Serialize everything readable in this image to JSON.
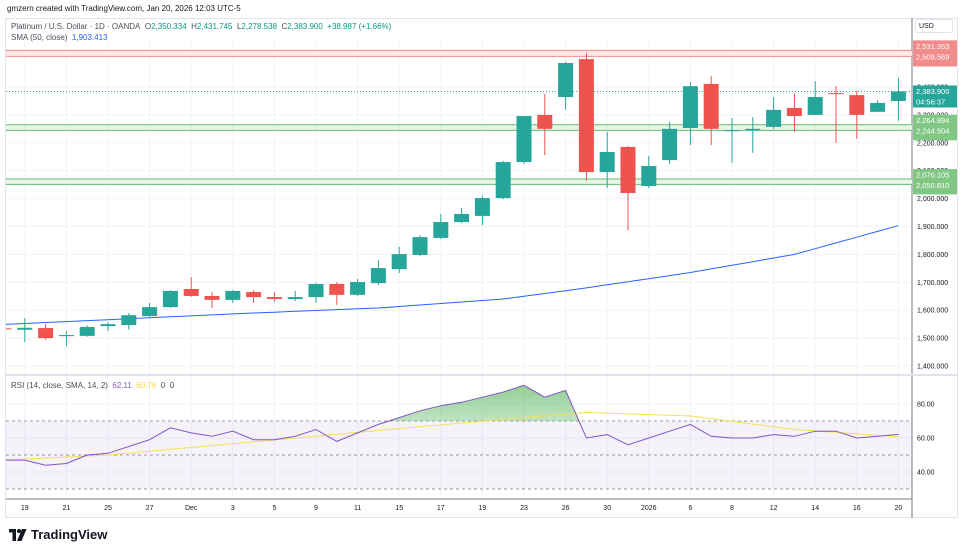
{
  "credit": "gmzern created with TradingView.com, Jan 20, 2026 12:03 UTC-5",
  "symbol": {
    "title": "Platinum / U.S. Dollar · 1D · OANDA",
    "o_label": "O",
    "o": "2,350.334",
    "h_label": "H",
    "h": "2,431.745",
    "l_label": "L",
    "l": "2,278.538",
    "c_label": "C",
    "c": "2,383.900",
    "change": "+38.987 (+1.66%)"
  },
  "sma_legend": {
    "label": "SMA (50, close)",
    "value": "1,903.413"
  },
  "rsi_legend": {
    "label": "RSI (14, close, SMA, 14, 2)",
    "rsi": "62.11",
    "sma": "60.76",
    "v3": "0",
    "v4": "0"
  },
  "currency": "USD",
  "colors": {
    "up": "#26a69a",
    "down": "#ef5350",
    "sma": "#2962ff",
    "rsi": "#7e57c2",
    "rsi_sma": "#f5e050",
    "res_zone": "#f7a1a1",
    "sup_zone": "#81c784"
  },
  "tags": {
    "res_top": "2,531.353",
    "res_bot": "2,509.569",
    "last_price": "2,383.900",
    "countdown": "04:56:37",
    "sup1_top": "2,264.894",
    "sup1_bot": "2,244.504",
    "sup2_top": "2,070.105",
    "sup2_bot": "2,050.810"
  },
  "logo_text": "TradingView",
  "chart_data": {
    "type": "candlestick",
    "price_axis": {
      "min": 1400,
      "max": 2400,
      "step": 100,
      "labels": [
        "2,400.000",
        "2,300.000",
        "2,200.000",
        "2,100.000",
        "2,000.000",
        "1,900.000",
        "1,800.000",
        "1,700.000",
        "1,600.000",
        "1,500.000",
        "1,400.000"
      ]
    },
    "x_ticks": [
      {
        "i": 1,
        "label": "19"
      },
      {
        "i": 3,
        "label": "21"
      },
      {
        "i": 5,
        "label": "25"
      },
      {
        "i": 7,
        "label": "27"
      },
      {
        "i": 9,
        "label": "Dec"
      },
      {
        "i": 11,
        "label": "3"
      },
      {
        "i": 13,
        "label": "5"
      },
      {
        "i": 15,
        "label": "9"
      },
      {
        "i": 17,
        "label": "11"
      },
      {
        "i": 19,
        "label": "15"
      },
      {
        "i": 21,
        "label": "17"
      },
      {
        "i": 23,
        "label": "19"
      },
      {
        "i": 25,
        "label": "23"
      },
      {
        "i": 27,
        "label": "26"
      },
      {
        "i": 29,
        "label": "30"
      },
      {
        "i": 31,
        "label": "2026"
      },
      {
        "i": 33,
        "label": "6"
      },
      {
        "i": 35,
        "label": "8"
      },
      {
        "i": 37,
        "label": "12"
      },
      {
        "i": 39,
        "label": "14"
      },
      {
        "i": 41,
        "label": "16"
      },
      {
        "i": 43,
        "label": "20"
      }
    ],
    "ohlc": [
      [
        1535,
        1540,
        1528,
        1532
      ],
      [
        1530,
        1572,
        1486,
        1537
      ],
      [
        1536,
        1550,
        1493,
        1500
      ],
      [
        1507,
        1525,
        1472,
        1511
      ],
      [
        1508,
        1545,
        1505,
        1540
      ],
      [
        1543,
        1557,
        1525,
        1550
      ],
      [
        1547,
        1590,
        1530,
        1582
      ],
      [
        1579,
        1626,
        1575,
        1611
      ],
      [
        1611,
        1672,
        1608,
        1669
      ],
      [
        1676,
        1719,
        1648,
        1651
      ],
      [
        1651,
        1665,
        1608,
        1637
      ],
      [
        1637,
        1672,
        1626,
        1669
      ],
      [
        1665,
        1672,
        1626,
        1647
      ],
      [
        1647,
        1665,
        1630,
        1640
      ],
      [
        1640,
        1669,
        1633,
        1647
      ],
      [
        1647,
        1698,
        1626,
        1694
      ],
      [
        1694,
        1701,
        1619,
        1655
      ],
      [
        1655,
        1712,
        1651,
        1701
      ],
      [
        1697,
        1779,
        1690,
        1751
      ],
      [
        1747,
        1827,
        1733,
        1801
      ],
      [
        1798,
        1869,
        1794,
        1862
      ],
      [
        1859,
        1945,
        1855,
        1916
      ],
      [
        1916,
        1966,
        1912,
        1945
      ],
      [
        1938,
        2010,
        1905,
        2002
      ],
      [
        2002,
        2135,
        1998,
        2131
      ],
      [
        2131,
        2296,
        2124,
        2296
      ],
      [
        2300,
        2375,
        2156,
        2250
      ],
      [
        2364,
        2490,
        2318,
        2486
      ],
      [
        2500,
        2522,
        2063,
        2095
      ],
      [
        2095,
        2239,
        2038,
        2167
      ],
      [
        2185,
        2189,
        1887,
        2020
      ],
      [
        2045,
        2153,
        2038,
        2117
      ],
      [
        2138,
        2275,
        2124,
        2250
      ],
      [
        2253,
        2418,
        2192,
        2403
      ],
      [
        2411,
        2439,
        2192,
        2250
      ],
      [
        2242,
        2289,
        2128,
        2245
      ],
      [
        2245,
        2292,
        2164,
        2250
      ],
      [
        2257,
        2364,
        2250,
        2318
      ],
      [
        2325,
        2378,
        2239,
        2296
      ],
      [
        2300,
        2421,
        2300,
        2364
      ],
      [
        2378,
        2403,
        2200,
        2375
      ],
      [
        2371,
        2386,
        2214,
        2300
      ],
      [
        2311,
        2353,
        2311,
        2343
      ],
      [
        2350,
        2432,
        2279,
        2384
      ]
    ],
    "sma50_keypoints": [
      [
        0,
        1549
      ],
      [
        5,
        1566
      ],
      [
        12,
        1590
      ],
      [
        18,
        1608
      ],
      [
        24,
        1640
      ],
      [
        28,
        1680
      ],
      [
        33,
        1735
      ],
      [
        38,
        1800
      ],
      [
        43,
        1903
      ]
    ],
    "zones": [
      {
        "kind": "resistance",
        "low": 2509.569,
        "high": 2531.353
      },
      {
        "kind": "support",
        "low": 2244.504,
        "high": 2264.894
      },
      {
        "kind": "support",
        "low": 2050.81,
        "high": 2070.105
      }
    ],
    "last_price": 2383.9,
    "rsi": {
      "axis_labels": [
        {
          "v": 80,
          "label": "80.00"
        },
        {
          "v": 60,
          "label": "60.00"
        },
        {
          "v": 40,
          "label": "40.00"
        }
      ],
      "upper": 70,
      "middle": 50,
      "lower": 30,
      "values": [
        47,
        47,
        44,
        45,
        50,
        51,
        55,
        59,
        66,
        63,
        61,
        64,
        59,
        59,
        61,
        65,
        58,
        63,
        68,
        72,
        76,
        79,
        81,
        84,
        87,
        91,
        84,
        88,
        60,
        62,
        56,
        60,
        64,
        68,
        61,
        60,
        60,
        62,
        61,
        64,
        64,
        60,
        61,
        62.11
      ],
      "sma_keypoints": [
        [
          0,
          47
        ],
        [
          5,
          50
        ],
        [
          14,
          60
        ],
        [
          24,
          71
        ],
        [
          28,
          75
        ],
        [
          33,
          73
        ],
        [
          38,
          65
        ],
        [
          43,
          60.76
        ]
      ]
    }
  }
}
